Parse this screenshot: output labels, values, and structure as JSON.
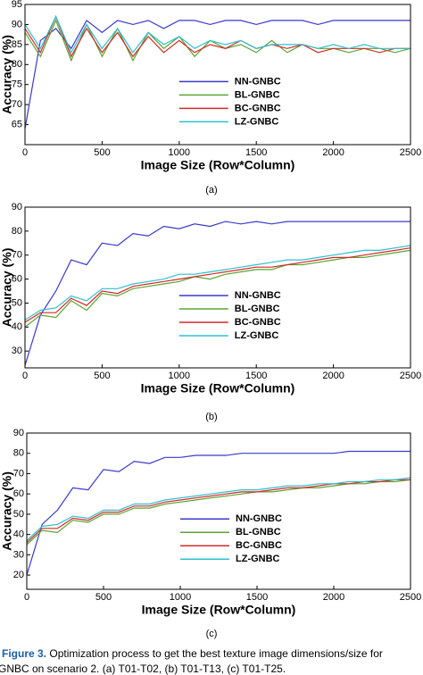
{
  "chart_data": [
    {
      "type": "line",
      "label": "(a)",
      "xlabel": "Image Size (Row*Column)",
      "ylabel": "Accuracy (%)",
      "x": [
        0,
        100,
        200,
        300,
        400,
        500,
        600,
        700,
        800,
        900,
        1000,
        1100,
        1200,
        1300,
        1400,
        1500,
        1600,
        1700,
        1800,
        1900,
        2000,
        2100,
        2200,
        2300,
        2400,
        2500
      ],
      "xlim": [
        0,
        2500
      ],
      "xticks": [
        0,
        500,
        1000,
        1500,
        2000,
        2500
      ],
      "ylim": [
        60,
        95
      ],
      "yticks": [
        65,
        70,
        75,
        80,
        85,
        90,
        95
      ],
      "legend": "lower center",
      "series": [
        {
          "name": "NN-GNBC",
          "color": "#3a3acb",
          "values": [
            64,
            86,
            89,
            84,
            91,
            88,
            91,
            90,
            91,
            89,
            91,
            91,
            90,
            91,
            91,
            90,
            91,
            91,
            91,
            90,
            91,
            91,
            91,
            91,
            91,
            91
          ]
        },
        {
          "name": "BL-GNBC",
          "color": "#5aa532",
          "values": [
            88,
            82,
            91,
            81,
            90,
            82,
            89,
            81,
            88,
            84,
            87,
            82,
            86,
            84,
            85,
            83,
            86,
            83,
            85,
            84,
            84,
            83,
            84,
            84,
            83,
            84
          ]
        },
        {
          "name": "BC-GNBC",
          "color": "#d42a2a",
          "values": [
            89,
            83,
            92,
            82,
            89,
            83,
            88,
            82,
            87,
            83,
            86,
            83,
            85,
            84,
            86,
            84,
            85,
            84,
            85,
            83,
            84,
            84,
            84,
            83,
            84,
            84
          ]
        },
        {
          "name": "LZ-GNBC",
          "color": "#2fbfd0",
          "values": [
            90,
            84,
            92,
            83,
            90,
            84,
            89,
            83,
            88,
            85,
            87,
            84,
            86,
            85,
            86,
            84,
            85,
            85,
            85,
            84,
            85,
            84,
            85,
            84,
            84,
            84
          ]
        }
      ]
    },
    {
      "type": "line",
      "label": "(b)",
      "xlabel": "Image Size (Row*Column)",
      "ylabel": "Accuracy (%)",
      "x": [
        0,
        100,
        200,
        300,
        400,
        500,
        600,
        700,
        800,
        900,
        1000,
        1100,
        1200,
        1300,
        1400,
        1500,
        1600,
        1700,
        1800,
        1900,
        2000,
        2100,
        2200,
        2300,
        2400,
        2500
      ],
      "xlim": [
        0,
        2500
      ],
      "xticks": [
        0,
        500,
        1000,
        1500,
        2000,
        2500
      ],
      "ylim": [
        23,
        90
      ],
      "yticks": [
        30,
        40,
        50,
        60,
        70,
        80,
        90
      ],
      "legend": "lower center",
      "series": [
        {
          "name": "NN-GNBC",
          "color": "#3a3acb",
          "values": [
            24,
            45,
            55,
            68,
            66,
            75,
            74,
            79,
            78,
            82,
            81,
            83,
            82,
            84,
            83,
            84,
            83,
            84,
            84,
            84,
            84,
            84,
            84,
            84,
            84,
            84
          ]
        },
        {
          "name": "BL-GNBC",
          "color": "#5aa532",
          "values": [
            40,
            45,
            44,
            51,
            47,
            54,
            53,
            56,
            57,
            58,
            59,
            61,
            60,
            62,
            63,
            64,
            64,
            66,
            66,
            67,
            68,
            69,
            69,
            70,
            71,
            72
          ]
        },
        {
          "name": "BC-GNBC",
          "color": "#d42a2a",
          "values": [
            42,
            46,
            46,
            52,
            49,
            55,
            54,
            57,
            58,
            59,
            60,
            61,
            62,
            63,
            64,
            65,
            65,
            66,
            67,
            68,
            69,
            69,
            70,
            71,
            72,
            73
          ]
        },
        {
          "name": "LZ-GNBC",
          "color": "#2fbfd0",
          "values": [
            43,
            47,
            48,
            53,
            51,
            56,
            56,
            58,
            59,
            60,
            62,
            62,
            63,
            64,
            65,
            66,
            67,
            68,
            68,
            69,
            70,
            71,
            72,
            72,
            73,
            74
          ]
        }
      ]
    },
    {
      "type": "line",
      "label": "(c)",
      "xlabel": "Image Size (Row*Column)",
      "ylabel": "Accuracy (%)",
      "x": [
        0,
        100,
        200,
        300,
        400,
        500,
        600,
        700,
        800,
        900,
        1000,
        1100,
        1200,
        1300,
        1400,
        1500,
        1600,
        1700,
        1800,
        1900,
        2000,
        2100,
        2200,
        2300,
        2400,
        2500
      ],
      "xlim": [
        0,
        2500
      ],
      "xticks": [
        0,
        500,
        1000,
        1500,
        2000,
        2500
      ],
      "ylim": [
        13,
        90
      ],
      "yticks": [
        20,
        30,
        40,
        50,
        60,
        70,
        80,
        90
      ],
      "legend": "lower center",
      "series": [
        {
          "name": "NN-GNBC",
          "color": "#3a3acb",
          "values": [
            20,
            45,
            52,
            63,
            62,
            72,
            71,
            76,
            75,
            78,
            78,
            79,
            79,
            79,
            80,
            80,
            80,
            80,
            80,
            80,
            80,
            81,
            81,
            81,
            81,
            81
          ]
        },
        {
          "name": "BL-GNBC",
          "color": "#5aa532",
          "values": [
            35,
            42,
            41,
            47,
            46,
            50,
            50,
            53,
            53,
            55,
            56,
            57,
            58,
            59,
            60,
            61,
            61,
            62,
            63,
            63,
            64,
            65,
            65,
            66,
            66,
            67
          ]
        },
        {
          "name": "BC-GNBC",
          "color": "#d42a2a",
          "values": [
            36,
            43,
            43,
            48,
            47,
            51,
            51,
            54,
            54,
            56,
            57,
            58,
            59,
            60,
            61,
            61,
            62,
            63,
            63,
            64,
            65,
            65,
            66,
            66,
            67,
            67
          ]
        },
        {
          "name": "LZ-GNBC",
          "color": "#2fbfd0",
          "values": [
            37,
            44,
            45,
            49,
            48,
            52,
            52,
            55,
            55,
            57,
            58,
            59,
            60,
            61,
            62,
            62,
            63,
            64,
            64,
            65,
            65,
            66,
            66,
            67,
            67,
            68
          ]
        }
      ]
    }
  ],
  "caption": {
    "label": "Figure 3.",
    "text_1": "Optimization process to get the best texture image dimensions/size for",
    "text_2": "GNBC on scenario 2. (a) T01-T02, (b) T01-T13, (c) T01-T25."
  }
}
